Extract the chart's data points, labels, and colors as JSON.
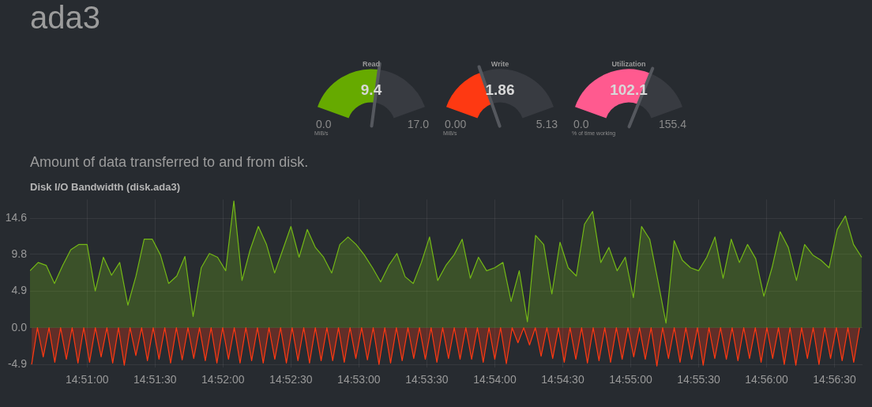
{
  "chart_data": [
    {
      "type": "other",
      "title": "ada3"
    },
    {
      "type": "donut",
      "title": "Read",
      "categories": [
        null,
        null
      ],
      "values": [
        55.3,
        44.7
      ],
      "colors": [
        "#66aa00",
        "#383b41"
      ],
      "annotations": [
        "9.4",
        "0.0",
        "17.0",
        "MiB/s"
      ]
    },
    {
      "type": "donut",
      "title": "Write",
      "categories": [
        null,
        null
      ],
      "values": [
        36.3,
        63.7
      ],
      "colors": [
        "#fe3912",
        "#383b41"
      ],
      "annotations": [
        "1.86",
        "0.00",
        "5.13",
        "MiB/s"
      ]
    },
    {
      "type": "donut",
      "title": "Utilization",
      "categories": [
        null,
        null
      ],
      "values": [
        65.7,
        34.3
      ],
      "colors": [
        "#ff5a8f",
        "#383b41"
      ],
      "annotations": [
        "102.1",
        "0.0",
        "155.4",
        "% of time working"
      ]
    },
    {
      "type": "area",
      "title": "Disk I/O Bandwidth (disk.ada3)",
      "subtitle": "Amount of data transferred to and from disk.",
      "grid": true,
      "xlim": [
        14.843,
        14.9451
      ],
      "ylim": [
        -5.3,
        17.1
      ],
      "yticks": [
        -4.9,
        {
          "value": 0,
          "label": "0.0"
        },
        4.9,
        9.8,
        14.6
      ],
      "xticks": [
        {
          "value": 14.85,
          "label": "14:51:00"
        },
        {
          "value": 14.858333,
          "label": "14:51:30"
        },
        {
          "value": 14.866667,
          "label": "14:52:00"
        },
        {
          "value": 14.875,
          "label": "14:52:30"
        },
        {
          "value": 14.883333,
          "label": "14:53:00"
        },
        {
          "value": 14.891667,
          "label": "14:53:30"
        },
        {
          "value": 14.9,
          "label": "14:54:00"
        },
        {
          "value": 14.908333,
          "label": "14:54:30"
        },
        {
          "value": 14.916667,
          "label": "14:55:00"
        },
        {
          "value": 14.925,
          "label": "14:55:30"
        },
        {
          "value": 14.933333,
          "label": "14:56:00"
        },
        {
          "value": 14.941667,
          "label": "14:56:30"
        }
      ],
      "series": [
        {
          "color": "#74b816",
          "x": [
            14.843,
            14.844,
            14.845,
            14.846,
            14.847,
            14.848,
            14.849,
            14.85,
            14.851,
            14.852,
            14.853,
            14.854,
            14.855,
            14.856,
            14.857,
            14.858,
            14.859,
            14.86,
            14.861,
            14.862,
            14.863,
            14.864,
            14.865,
            14.866,
            14.867,
            14.868,
            14.869,
            14.87,
            14.871,
            14.872,
            14.873,
            14.874,
            14.875,
            14.876,
            14.877,
            14.878,
            14.879,
            14.88,
            14.881,
            14.882,
            14.883,
            14.884,
            14.885,
            14.886,
            14.887,
            14.888,
            14.889,
            14.89,
            14.891,
            14.892,
            14.893,
            14.894,
            14.895,
            14.896,
            14.897,
            14.898,
            14.899,
            14.9,
            14.901,
            14.902,
            14.903,
            14.904,
            14.905,
            14.906,
            14.907,
            14.908,
            14.909,
            14.91,
            14.911,
            14.912,
            14.913,
            14.914,
            14.915,
            14.916,
            14.917,
            14.918,
            14.919,
            14.92,
            14.921,
            14.922,
            14.923,
            14.924,
            14.925,
            14.926,
            14.927,
            14.928,
            14.929,
            14.93,
            14.931,
            14.932,
            14.933,
            14.934,
            14.935,
            14.936,
            14.937,
            14.938,
            14.939,
            14.94,
            14.941,
            14.942,
            14.943,
            14.944,
            14.945
          ],
          "values": [
            7.6,
            8.7,
            8.3,
            5.9,
            8.3,
            10.4,
            11.1,
            11.1,
            4.9,
            9.4,
            7.0,
            8.7,
            3.0,
            6.9,
            11.8,
            11.8,
            9.7,
            5.9,
            6.9,
            9.5,
            1.5,
            8.0,
            9.9,
            9.4,
            7.6,
            16.9,
            6.3,
            10.4,
            13.5,
            11.1,
            7.3,
            10.4,
            13.5,
            9.4,
            13.1,
            10.7,
            9.4,
            7.3,
            11.1,
            12.1,
            11.1,
            9.7,
            8.0,
            6.1,
            8.3,
            9.9,
            6.8,
            5.9,
            8.7,
            12.1,
            6.3,
            8.3,
            9.7,
            11.8,
            6.6,
            9.4,
            7.6,
            8.0,
            8.7,
            3.5,
            7.6,
            0.8,
            12.3,
            11.1,
            4.5,
            11.4,
            8.0,
            6.9,
            13.8,
            15.5,
            8.7,
            10.7,
            7.6,
            9.4,
            4.0,
            13.5,
            11.8,
            6.3,
            0.6,
            11.6,
            9.0,
            8.0,
            7.6,
            9.4,
            12.1,
            6.6,
            11.8,
            8.7,
            11.1,
            9.2,
            4.2,
            8.0,
            12.8,
            10.7,
            6.3,
            11.1,
            9.7,
            9.0,
            8.0,
            13.1,
            14.9,
            11.1,
            9.4
          ]
        },
        {
          "color": "#fe3912",
          "x": [
            14.8432,
            14.84391,
            14.84462,
            14.84533,
            14.84604,
            14.84675,
            14.84746,
            14.84817,
            14.84888,
            14.84959,
            14.8503,
            14.85101,
            14.85172,
            14.85243,
            14.85314,
            14.85385,
            14.85456,
            14.85527,
            14.85598,
            14.85669,
            14.8574,
            14.85811,
            14.85882,
            14.85953,
            14.86024,
            14.86095,
            14.86166,
            14.86237,
            14.86308,
            14.86379,
            14.8645,
            14.86521,
            14.86592,
            14.86663,
            14.86734,
            14.86805,
            14.86876,
            14.86947,
            14.87018,
            14.87089,
            14.8716,
            14.87231,
            14.87302,
            14.87373,
            14.87444,
            14.87515,
            14.87586,
            14.87657,
            14.87728,
            14.87799,
            14.8787,
            14.87941,
            14.88012,
            14.88083,
            14.88154,
            14.88225,
            14.88296,
            14.88367,
            14.88438,
            14.88509,
            14.8858,
            14.88651,
            14.88722,
            14.88793,
            14.88864,
            14.88935,
            14.89006,
            14.89077,
            14.89148,
            14.89219,
            14.8929,
            14.89361,
            14.89432,
            14.89503,
            14.89574,
            14.89645,
            14.89716,
            14.89787,
            14.89858,
            14.89929,
            14.9,
            14.90071,
            14.90142,
            14.90213,
            14.90284,
            14.90355,
            14.90426,
            14.90497,
            14.90568,
            14.90639,
            14.9071,
            14.90781,
            14.90852,
            14.90923,
            14.90994,
            14.91065,
            14.91136,
            14.91207,
            14.91278,
            14.91349,
            14.9142,
            14.91491,
            14.91562,
            14.91633,
            14.91704,
            14.91775,
            14.91846,
            14.91917,
            14.91988,
            14.92059,
            14.9213,
            14.92201,
            14.92272,
            14.92343,
            14.92414,
            14.92485,
            14.92556,
            14.92627,
            14.92698,
            14.92769,
            14.9284,
            14.92911,
            14.92982,
            14.93053,
            14.93124,
            14.93195,
            14.93266,
            14.93337,
            14.93408,
            14.93479,
            14.9355,
            14.93621,
            14.93692,
            14.93763,
            14.93834,
            14.93905,
            14.93976,
            14.94047,
            14.94118,
            14.94189,
            14.9426,
            14.94331,
            14.94402,
            14.94473
          ],
          "values": [
            -4.9,
            0,
            -3.9,
            0,
            -4.6,
            0,
            -4.2,
            0,
            -4.7,
            0,
            -4.6,
            0,
            -3.9,
            0,
            -4.7,
            0,
            -5.0,
            0,
            -3.7,
            0,
            -4.4,
            0,
            -4.2,
            0,
            -4.7,
            0,
            -4.3,
            0,
            -4.1,
            0,
            -4.4,
            0,
            -4.7,
            0,
            -4.2,
            0,
            -4.7,
            0,
            -4.4,
            0,
            -4.7,
            0,
            -4.2,
            0,
            -4.7,
            0,
            -4.4,
            0,
            -4.7,
            0,
            -4.4,
            0,
            -4.4,
            0,
            -4.6,
            0,
            -4.1,
            0,
            -4.3,
            0,
            -4.9,
            0,
            -4.7,
            0,
            -4.4,
            0,
            -4.1,
            0,
            -4.2,
            0,
            -4.6,
            0,
            -4.1,
            0,
            -4.2,
            0,
            -4.2,
            0,
            -4.6,
            0,
            -4.2,
            0,
            -4.8,
            0,
            -2.0,
            0,
            -2.3,
            0,
            -3.8,
            0,
            -4.1,
            0,
            -4.6,
            0,
            -4.2,
            0,
            -4.7,
            0,
            -4.4,
            0,
            -4.6,
            0,
            -4.2,
            0,
            -3.9,
            0,
            -4.2,
            0,
            -5.1,
            0,
            -4.1,
            0,
            -4.6,
            0,
            -4.2,
            0,
            -5.0,
            0,
            -4.1,
            0,
            -4.2,
            0,
            -4.4,
            0,
            -4.1,
            0,
            -4.6,
            0,
            -4.1,
            0,
            -4.9,
            0,
            -5.0,
            0,
            -4.1,
            0,
            -4.9,
            0,
            -4.1,
            0,
            -4.4,
            0,
            -4.6,
            0
          ]
        }
      ]
    }
  ]
}
